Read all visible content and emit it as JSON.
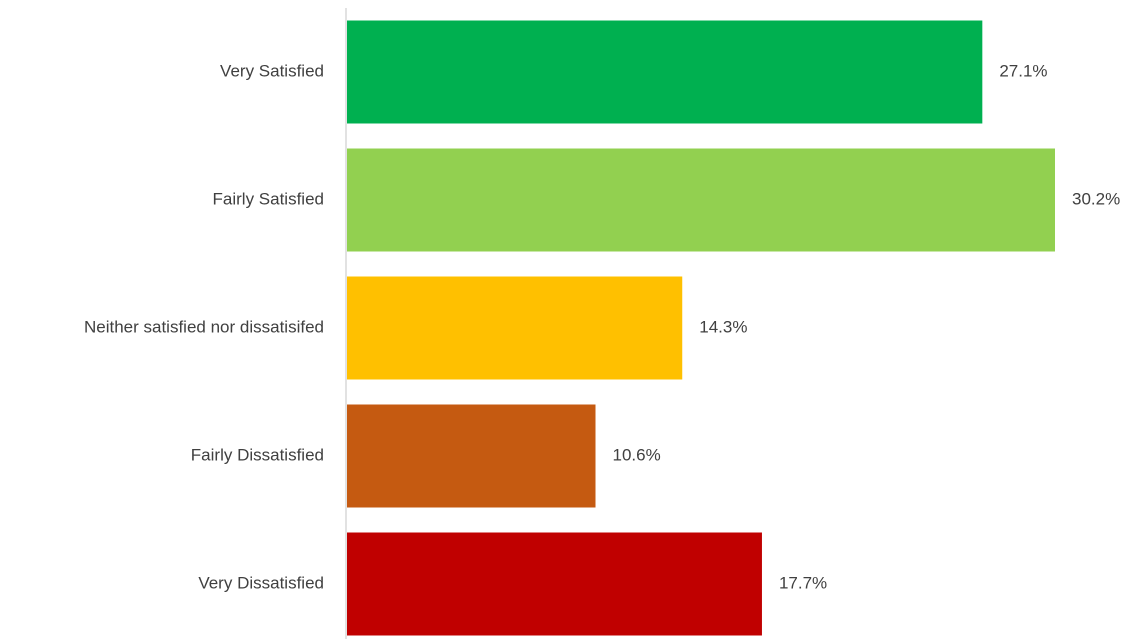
{
  "chart_data": {
    "type": "bar",
    "orientation": "horizontal",
    "categories": [
      "Very Satisfied",
      "Fairly Satisfied",
      "Neither satisfied nor dissatisifed",
      "Fairly Dissatisfied",
      "Very Dissatisfied"
    ],
    "values": [
      27.1,
      30.2,
      14.3,
      10.6,
      17.7
    ],
    "value_labels": [
      "27.1%",
      "30.2%",
      "14.3%",
      "10.6%",
      "17.7%"
    ],
    "colors": [
      "#00b050",
      "#92d050",
      "#ffc000",
      "#c55a11",
      "#c00000"
    ],
    "title": "",
    "xlabel": "",
    "ylabel": "",
    "xlim": [
      0,
      30.2
    ],
    "grid": false,
    "legend": "none"
  }
}
